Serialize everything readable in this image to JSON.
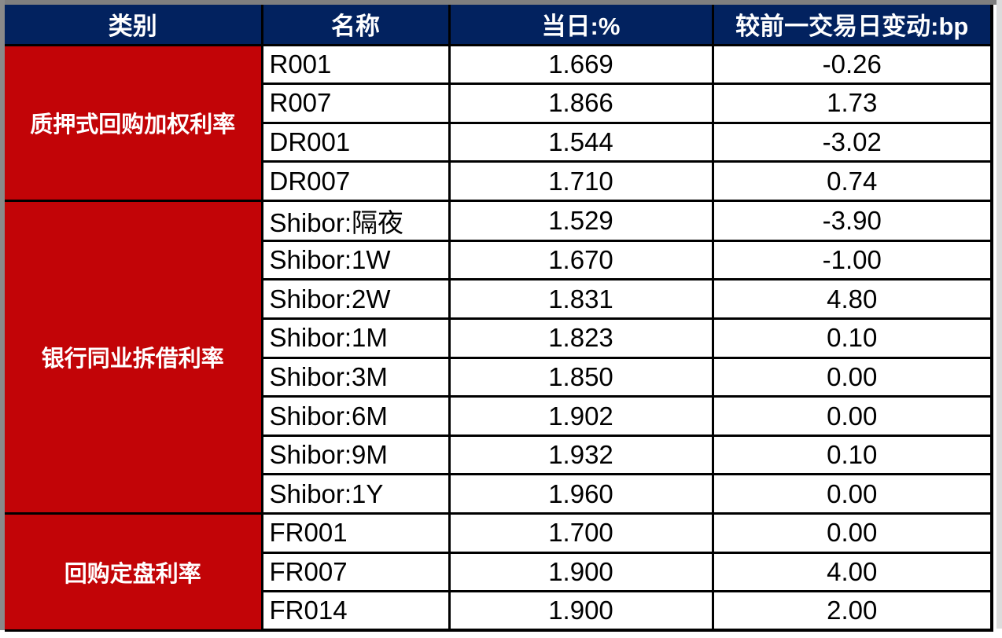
{
  "table": {
    "headers": [
      "类别",
      "名称",
      "当日:%",
      "较前一交易日变动:bp"
    ],
    "groups": [
      {
        "category": "质押式回购加权利率",
        "rows": [
          [
            "R001",
            "1.669",
            "-0.26"
          ],
          [
            "R007",
            "1.866",
            "1.73"
          ],
          [
            "DR001",
            "1.544",
            "-3.02"
          ],
          [
            "DR007",
            "1.710",
            "0.74"
          ]
        ]
      },
      {
        "category": "银行同业拆借利率",
        "rows": [
          [
            "Shibor:隔夜",
            "1.529",
            "-3.90"
          ],
          [
            "Shibor:1W",
            "1.670",
            "-1.00"
          ],
          [
            "Shibor:2W",
            "1.831",
            "4.80"
          ],
          [
            "Shibor:1M",
            "1.823",
            "0.10"
          ],
          [
            "Shibor:3M",
            "1.850",
            "0.00"
          ],
          [
            "Shibor:6M",
            "1.902",
            "0.00"
          ],
          [
            "Shibor:9M",
            "1.932",
            "0.10"
          ],
          [
            "Shibor:1Y",
            "1.960",
            "0.00"
          ]
        ]
      },
      {
        "category": "回购定盘利率",
        "rows": [
          [
            "FR001",
            "1.700",
            "0.00"
          ],
          [
            "FR007",
            "1.900",
            "4.00"
          ],
          [
            "FR014",
            "1.900",
            "2.00"
          ]
        ]
      }
    ],
    "colors": {
      "header_bg": "#02225F",
      "header_text": "#FFFFFF",
      "category_bg": "#C20407",
      "category_text": "#FFFFFF",
      "body_text": "#000000",
      "grid_border": "#000000",
      "frame_gray": "#7F7F7F"
    }
  },
  "chart_data": {
    "type": "table",
    "title": "",
    "columns": [
      "类别",
      "名称",
      "当日:%",
      "较前一交易日变动:bp"
    ],
    "rows": [
      [
        "质押式回购加权利率",
        "R001",
        1.669,
        -0.26
      ],
      [
        "质押式回购加权利率",
        "R007",
        1.866,
        1.73
      ],
      [
        "质押式回购加权利率",
        "DR001",
        1.544,
        -3.02
      ],
      [
        "质押式回购加权利率",
        "DR007",
        1.71,
        0.74
      ],
      [
        "银行同业拆借利率",
        "Shibor:隔夜",
        1.529,
        -3.9
      ],
      [
        "银行同业拆借利率",
        "Shibor:1W",
        1.67,
        -1.0
      ],
      [
        "银行同业拆借利率",
        "Shibor:2W",
        1.831,
        4.8
      ],
      [
        "银行同业拆借利率",
        "Shibor:1M",
        1.823,
        0.1
      ],
      [
        "银行同业拆借利率",
        "Shibor:3M",
        1.85,
        0.0
      ],
      [
        "银行同业拆借利率",
        "Shibor:6M",
        1.902,
        0.0
      ],
      [
        "银行同业拆借利率",
        "Shibor:9M",
        1.932,
        0.1
      ],
      [
        "银行同业拆借利率",
        "Shibor:1Y",
        1.96,
        0.0
      ],
      [
        "回购定盘利率",
        "FR001",
        1.7,
        0.0
      ],
      [
        "回购定盘利率",
        "FR007",
        1.9,
        4.0
      ],
      [
        "回购定盘利率",
        "FR014",
        1.9,
        2.0
      ]
    ]
  }
}
